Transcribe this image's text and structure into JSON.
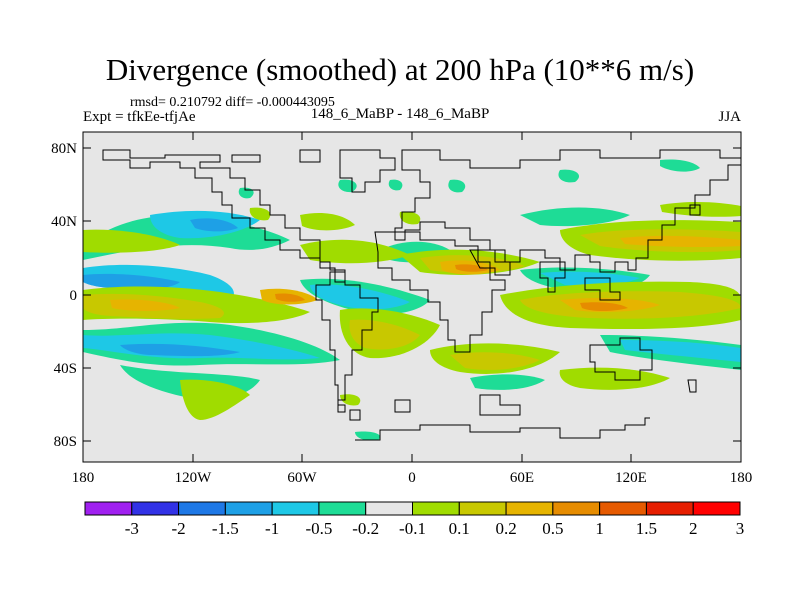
{
  "figure": {
    "title": "Divergence (smoothed) at 200 hPa (10**6 m/s)",
    "stats": "rmsd= 0.210792 diff= -0.000443095",
    "experiment": "Expt = tfkEe-tfjAe",
    "case": "148_6_MaBP - 148_6_MaBP",
    "season": "JJA"
  },
  "map": {
    "background_color": "#e6e6e6",
    "lon_ticks": [
      "180",
      "120W",
      "60W",
      "0",
      "60E",
      "120E",
      "180"
    ],
    "lat_ticks": [
      "80N",
      "40N",
      "0",
      "40S",
      "80S"
    ]
  },
  "colorbar": {
    "colors": [
      "#a020f0",
      "#3232e6",
      "#1e78e6",
      "#1ea0e6",
      "#1ec8e6",
      "#1edc96",
      "#e6e6e6",
      "#a0dc00",
      "#c8c800",
      "#e6b400",
      "#e68c00",
      "#e65a00",
      "#e61e00",
      "#ff0000"
    ],
    "labels": [
      "-3",
      "-2",
      "-1.5",
      "-1",
      "-0.5",
      "-0.2",
      "-0.1",
      "0.1",
      "0.2",
      "0.5",
      "1",
      "1.5",
      "2",
      "3"
    ]
  }
}
